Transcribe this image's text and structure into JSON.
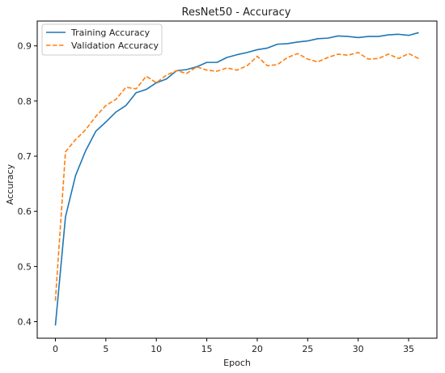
{
  "chart_data": {
    "type": "line",
    "title": "ResNet50 - Accuracy",
    "xlabel": "Epoch",
    "ylabel": "Accuracy",
    "xlim": [
      -1.8,
      37.8
    ],
    "ylim": [
      0.37,
      0.945
    ],
    "xticks": [
      0,
      5,
      10,
      15,
      20,
      25,
      30,
      35
    ],
    "yticks": [
      0.4,
      0.5,
      0.6,
      0.7,
      0.8,
      0.9
    ],
    "grid": false,
    "legend_position": "upper-left",
    "series": [
      {
        "name": "Training Accuracy",
        "color": "#1f77b4",
        "linestyle": "solid",
        "x": [
          0,
          1,
          2,
          3,
          4,
          5,
          6,
          7,
          8,
          9,
          10,
          11,
          12,
          13,
          14,
          15,
          16,
          17,
          18,
          19,
          20,
          21,
          22,
          23,
          24,
          25,
          26,
          27,
          28,
          29,
          30,
          31,
          32,
          33,
          34,
          35,
          36
        ],
        "values": [
          0.393,
          0.59,
          0.665,
          0.71,
          0.745,
          0.762,
          0.78,
          0.792,
          0.815,
          0.821,
          0.833,
          0.84,
          0.855,
          0.857,
          0.862,
          0.87,
          0.87,
          0.879,
          0.884,
          0.888,
          0.893,
          0.896,
          0.903,
          0.904,
          0.907,
          0.909,
          0.913,
          0.914,
          0.918,
          0.917,
          0.915,
          0.917,
          0.917,
          0.92,
          0.921,
          0.919,
          0.924
        ]
      },
      {
        "name": "Validation Accuracy",
        "color": "#ff7f0e",
        "linestyle": "dashed",
        "x": [
          0,
          1,
          2,
          3,
          4,
          5,
          6,
          7,
          8,
          9,
          10,
          11,
          12,
          13,
          14,
          15,
          16,
          17,
          18,
          19,
          20,
          21,
          22,
          23,
          24,
          25,
          26,
          27,
          28,
          29,
          30,
          31,
          32,
          33,
          34,
          35,
          36
        ],
        "values": [
          0.438,
          0.708,
          0.73,
          0.748,
          0.772,
          0.792,
          0.803,
          0.825,
          0.822,
          0.845,
          0.833,
          0.847,
          0.855,
          0.85,
          0.862,
          0.856,
          0.854,
          0.86,
          0.856,
          0.864,
          0.881,
          0.864,
          0.866,
          0.879,
          0.886,
          0.876,
          0.871,
          0.879,
          0.885,
          0.883,
          0.888,
          0.876,
          0.877,
          0.885,
          0.877,
          0.886,
          0.877
        ]
      }
    ]
  }
}
